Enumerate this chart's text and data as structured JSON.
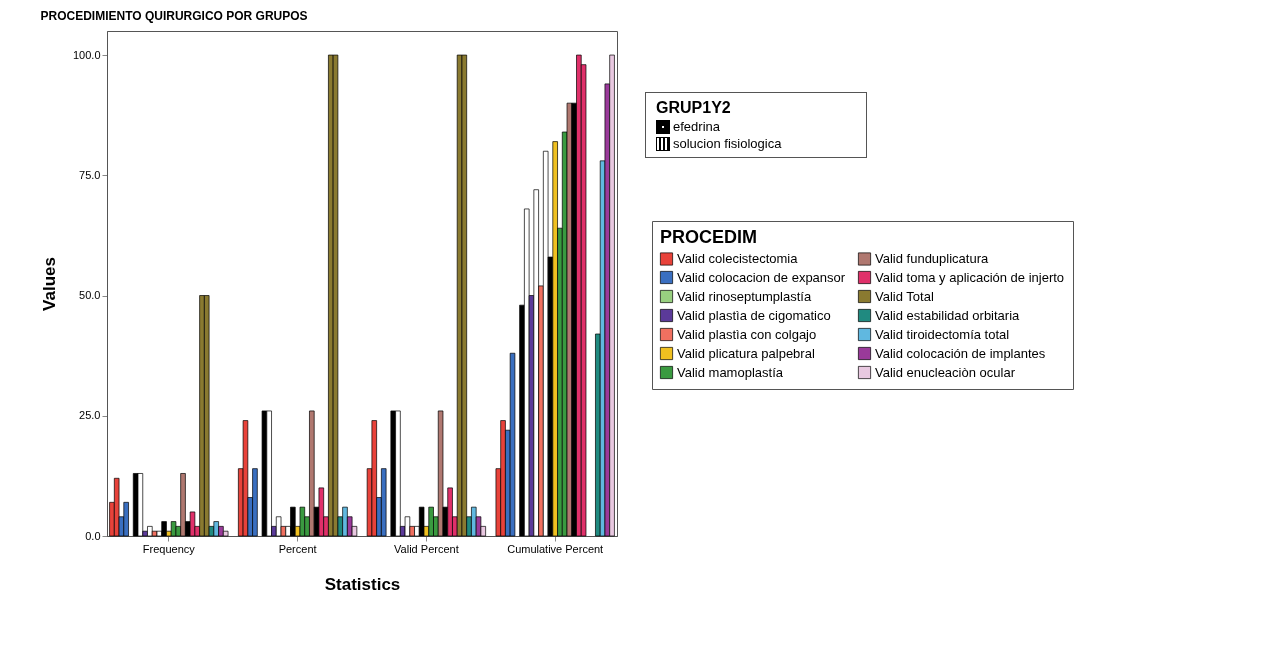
{
  "chart_data": {
    "type": "bar",
    "title": "PROCEDIMIENTO QUIRURGICO POR GRUPOS",
    "xlabel": "Statistics",
    "ylabel": "Values",
    "legend_title": "PROCEDIM",
    "legend": "right",
    "annotations": [
      "GRUP1Y2",
      "efedrina",
      "solucion fisiologica"
    ],
    "categories": [
      "Frequency",
      "Percent",
      "Valid Percent",
      "Cumulative Percent"
    ],
    "ylim": [
      0,
      105
    ],
    "yticks": [
      {
        "value": 0,
        "label": "0.0"
      },
      {
        "value": 25,
        "label": "25.0"
      },
      {
        "value": 50,
        "label": "50.0"
      },
      {
        "value": 75,
        "label": "75.0"
      },
      {
        "value": 100,
        "label": "100.0"
      }
    ],
    "series": [
      {
        "name": "Valid colecistectomia",
        "color": "#e8423a",
        "values": [
          7,
          14,
          14,
          14
        ]
      },
      {
        "color": "#e8423a",
        "values": [
          12,
          24,
          24,
          24
        ]
      },
      {
        "name": "Valid colocacion de expansor",
        "color": "#3a6fc0",
        "values": [
          4,
          8,
          8,
          22
        ]
      },
      {
        "color": "#3a6fc0",
        "values": [
          7,
          14,
          14,
          38
        ]
      },
      {
        "name": "Valid rinoseptumplastía",
        "color": "#98d080",
        "values": [
          null,
          null,
          null,
          null
        ]
      },
      {
        "color": "#000000",
        "values": [
          13,
          26,
          26,
          48
        ]
      },
      {
        "color": "#ffffff",
        "values": [
          13,
          26,
          26,
          68
        ]
      },
      {
        "name": "Valid plastìa de cigomatico",
        "color": "#5b3a99",
        "values": [
          1,
          2,
          2,
          50
        ]
      },
      {
        "color": "#ffffff",
        "values": [
          2,
          4,
          4,
          72
        ]
      },
      {
        "name": "Valid plastìa con colgajo",
        "color": "#f07060",
        "values": [
          1,
          2,
          2,
          52
        ]
      },
      {
        "color": "#ffffff",
        "values": [
          1,
          2,
          2,
          80
        ]
      },
      {
        "color": "#000000",
        "values": [
          3,
          6,
          6,
          58
        ]
      },
      {
        "name": "Valid plicatura palpebral",
        "color": "#f0c020",
        "values": [
          1,
          2,
          2,
          82
        ]
      },
      {
        "name": "Valid mamoplastía",
        "color": "#3a9a40",
        "values": [
          3,
          6,
          6,
          64
        ]
      },
      {
        "color": "#3a9a40",
        "values": [
          2,
          4,
          4,
          84
        ]
      },
      {
        "name": "Valid funduplicatura",
        "color": "#b07870",
        "values": [
          13,
          26,
          26,
          90
        ]
      },
      {
        "color": "#000000",
        "values": [
          3,
          6,
          6,
          90
        ]
      },
      {
        "name": "Valid toma y aplicación de injerto",
        "color": "#e0306a",
        "values": [
          5,
          10,
          10,
          100
        ]
      },
      {
        "color": "#e0306a",
        "values": [
          2,
          4,
          4,
          98
        ]
      },
      {
        "name": "Valid Total",
        "color": "#8a7a30",
        "values": [
          50,
          100,
          100,
          null
        ]
      },
      {
        "color": "#8a7a30",
        "values": [
          50,
          100,
          100,
          null
        ]
      },
      {
        "name": "Valid estabilidad orbitaria",
        "color": "#208a80",
        "values": [
          2,
          4,
          4,
          42
        ]
      },
      {
        "name": "Valid tiroidectomía total",
        "color": "#60b8e0",
        "values": [
          3,
          6,
          6,
          78
        ]
      },
      {
        "name": "Valid colocación de implantes",
        "color": "#9a3a9a",
        "values": [
          2,
          4,
          4,
          94
        ]
      },
      {
        "name": "Valid enucleaciòn ocular",
        "color": "#e8c8e0",
        "values": [
          1,
          2,
          2,
          100
        ]
      }
    ]
  }
}
